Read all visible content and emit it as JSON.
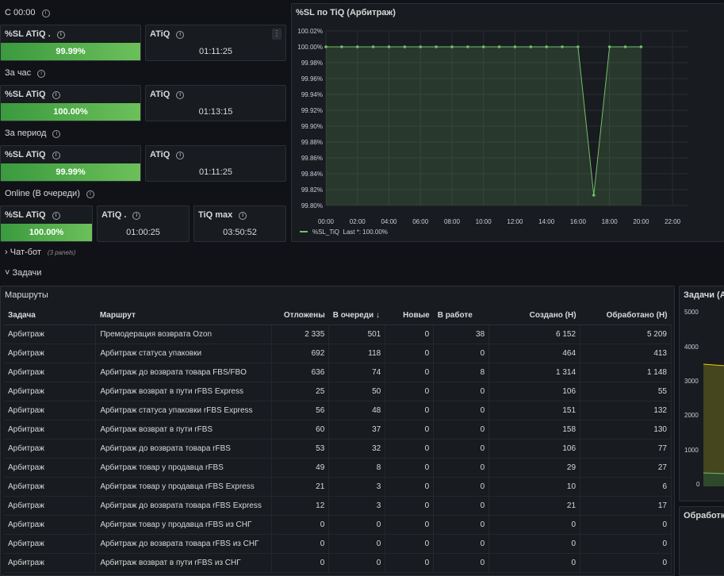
{
  "section_c0000": {
    "title": "С 00:00"
  },
  "row1": {
    "sl": {
      "title": "%SL ATiQ .",
      "value": "99.99%"
    },
    "atiq": {
      "title": "ATiQ",
      "value": "01:11:25"
    }
  },
  "section_hour": {
    "title": "За час"
  },
  "row2": {
    "sl": {
      "title": "%SL ATiQ",
      "value": "100.00%"
    },
    "atiq": {
      "title": "ATiQ",
      "value": "01:13:15"
    }
  },
  "section_period": {
    "title": "За период"
  },
  "row3": {
    "sl": {
      "title": "%SL ATiQ",
      "value": "99.99%"
    },
    "atiq": {
      "title": "ATiQ",
      "value": "01:11:25"
    }
  },
  "section_online": {
    "title": "Online (В очереди)"
  },
  "row4": {
    "sl": {
      "title": "%SL ATiQ",
      "value": "100.00%"
    },
    "atiq": {
      "title": "ATiQ .",
      "value": "01:00:25"
    },
    "tiqmax": {
      "title": "TiQ max",
      "value": "03:50:52"
    }
  },
  "chatbot": {
    "label": "Чат-бот",
    "count": "(3 panels)"
  },
  "tasks": {
    "label": "Задачи"
  },
  "chart_panel": {
    "title": "%SL по TiQ (Арбитраж)",
    "legend_label": "%SL_TiQ",
    "legend_last": "Last *: 100.00%"
  },
  "chart_data": {
    "type": "line",
    "title": "%SL по TiQ (Арбитраж)",
    "x_ticks": [
      "00:00",
      "02:00",
      "04:00",
      "06:00",
      "08:00",
      "10:00",
      "12:00",
      "14:00",
      "16:00",
      "18:00",
      "20:00",
      "22:00"
    ],
    "y_ticks": [
      "100.02%",
      "100.00%",
      "99.98%",
      "99.96%",
      "99.94%",
      "99.92%",
      "99.90%",
      "99.88%",
      "99.86%",
      "99.84%",
      "99.82%",
      "99.80%"
    ],
    "ylim": [
      99.8,
      100.02
    ],
    "xlim": [
      0,
      23
    ],
    "series": [
      {
        "name": "%SL_TiQ",
        "color": "#73bf69",
        "x": [
          0,
          1,
          2,
          3,
          4,
          5,
          6,
          7,
          8,
          9,
          10,
          11,
          12,
          13,
          14,
          15,
          16,
          17,
          18,
          19,
          20
        ],
        "values": [
          100,
          100,
          100,
          100,
          100,
          100,
          100,
          100,
          100,
          100,
          100,
          100,
          100,
          100,
          100,
          100,
          100,
          99.813,
          100,
          100,
          100
        ]
      }
    ],
    "grid": true,
    "legend": "bottom-left"
  },
  "routes_panel": {
    "title": "Маршруты"
  },
  "routes_table": {
    "headers": [
      "Задача",
      "Маршрут",
      "Отложены",
      "В очереди ↓",
      "Новые",
      "В работе",
      "Создано (Н)",
      "Обработано (Н)"
    ],
    "rows": [
      [
        "Арбитраж",
        "Премодерация возврата Ozon",
        "2 335",
        "501",
        "0",
        "38",
        "6 152",
        "5 209"
      ],
      [
        "Арбитраж",
        "Арбитраж статуса упаковки",
        "692",
        "118",
        "0",
        "0",
        "464",
        "413"
      ],
      [
        "Арбитраж",
        "Арбитраж до возврата товара FBS/FBO",
        "636",
        "74",
        "0",
        "8",
        "1 314",
        "1 148"
      ],
      [
        "Арбитраж",
        "Арбитраж возврат в пути rFBS Express",
        "25",
        "50",
        "0",
        "0",
        "106",
        "55"
      ],
      [
        "Арбитраж",
        "Арбитраж статуса упаковки rFBS Express",
        "56",
        "48",
        "0",
        "0",
        "151",
        "132"
      ],
      [
        "Арбитраж",
        "Арбитраж возврат в пути rFBS",
        "60",
        "37",
        "0",
        "0",
        "158",
        "130"
      ],
      [
        "Арбитраж",
        "Арбитраж до возврата товара rFBS",
        "53",
        "32",
        "0",
        "0",
        "106",
        "77"
      ],
      [
        "Арбитраж",
        "Арбитраж товар у продавца rFBS",
        "49",
        "8",
        "0",
        "0",
        "29",
        "27"
      ],
      [
        "Арбитраж",
        "Арбитраж товар у продавца rFBS Express",
        "21",
        "3",
        "0",
        "0",
        "10",
        "6"
      ],
      [
        "Арбитраж",
        "Арбитраж до возврата товара rFBS Express",
        "12",
        "3",
        "0",
        "0",
        "21",
        "17"
      ],
      [
        "Арбитраж",
        "Арбитраж товар у продавца rFBS из СНГ",
        "0",
        "0",
        "0",
        "0",
        "0",
        "0"
      ],
      [
        "Арбитраж",
        "Арбитраж до возврата товара rFBS из СНГ",
        "0",
        "0",
        "0",
        "0",
        "0",
        "0"
      ],
      [
        "Арбитраж",
        "Арбитраж возврат в пути rFBS из СНГ",
        "0",
        "0",
        "0",
        "0",
        "0",
        "0"
      ]
    ]
  },
  "right_panel": {
    "title": "Задачи (Ар",
    "y_ticks": [
      "5000",
      "4000",
      "3000",
      "2000",
      "1000",
      "0"
    ]
  },
  "right_bottom_panel": {
    "title": "Обработка"
  }
}
